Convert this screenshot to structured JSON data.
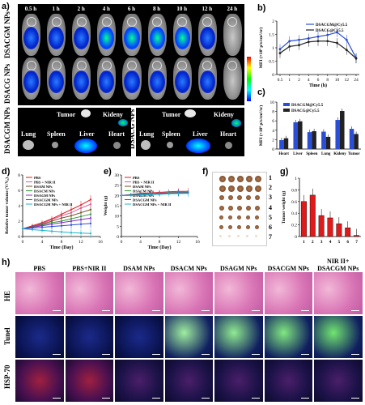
{
  "panel_a": {
    "label": "a)",
    "times": [
      "0.5 h",
      "1 h",
      "2 h",
      "4 h",
      "6 h",
      "8 h",
      "10 h",
      "12 h",
      "24 h"
    ],
    "row1_label": "DSACGM NPs",
    "row2_label": "DSACG NPs"
  },
  "panel_a2": {
    "row_label": "DSACGM NPs",
    "left_organs": {
      "tumor": "Tumor",
      "kidney": "Kideny",
      "lung": "Lung",
      "spleen": "Spleen",
      "liver": "Liver",
      "heart": "Heart"
    },
    "right_label": "DSACG NPs",
    "right_organs": {
      "tumor": "Tumor",
      "kidney": "Kideny",
      "lung": "Lung",
      "spleen": "Spleen",
      "liver": "Liver",
      "heart": "Heart"
    }
  },
  "panel_labels": {
    "b": "b)",
    "c": "c)",
    "d": "d)",
    "e": "e)",
    "f": "f)",
    "g": "g)",
    "h": "h)"
  },
  "chart_data": [
    {
      "id": "b",
      "type": "line",
      "xlabel": "Time (h)",
      "ylabel": "MFI (×10⁹ p/s/cm²/sr)",
      "x": [
        "0.5",
        "1",
        "2",
        "4",
        "6",
        "8",
        "10",
        "12",
        "24"
      ],
      "ylim": [
        0,
        2.0
      ],
      "yticks": [
        0.0,
        0.5,
        1.0,
        1.5,
        2.0
      ],
      "series": [
        {
          "name": "DSACGM@Cy5.5",
          "color": "#2a4fd6",
          "values": [
            0.95,
            1.25,
            1.3,
            1.35,
            1.42,
            1.48,
            1.58,
            1.3,
            0.62
          ]
        },
        {
          "name": "DSACG@Cy5.5",
          "color": "#222222",
          "values": [
            0.8,
            1.05,
            1.1,
            1.22,
            1.25,
            1.25,
            1.18,
            0.92,
            0.6
          ]
        }
      ]
    },
    {
      "id": "c",
      "type": "bar",
      "categories": [
        "Heart",
        "Liver",
        "Spleen",
        "Lung",
        "Kideny",
        "Tumor"
      ],
      "ylabel": "MFI (×10⁹ p/s/cm²/sr)",
      "ylim": [
        0,
        10
      ],
      "yticks": [
        0,
        2,
        4,
        6,
        8,
        10
      ],
      "series": [
        {
          "name": "DSACGM@Cy5.5",
          "color": "#2a4fd6",
          "values": [
            1.9,
            5.7,
            3.6,
            3.7,
            6.2,
            4.3
          ]
        },
        {
          "name": "DSACG@Cy5.5",
          "color": "#222222",
          "values": [
            2.3,
            5.9,
            3.8,
            2.6,
            8.1,
            3.2
          ]
        }
      ]
    },
    {
      "id": "d",
      "type": "line",
      "xlabel": "Time (Day)",
      "ylabel": "Relative tumor volume (V/V₀)",
      "x": [
        0,
        2,
        4,
        6,
        8,
        10,
        12,
        14
      ],
      "xlim": [
        0,
        16
      ],
      "xticks": [
        0,
        4,
        8,
        12,
        16
      ],
      "ylim": [
        0,
        8
      ],
      "yticks": [
        0,
        2,
        4,
        6,
        8
      ],
      "series": [
        {
          "name": "PBS",
          "color": "#e0191b",
          "values": [
            1.0,
            1.4,
            1.8,
            2.3,
            2.9,
            3.5,
            4.1,
            4.8
          ]
        },
        {
          "name": "PBS + NIR II",
          "color": "#e05a9a",
          "values": [
            1.0,
            1.3,
            1.7,
            2.2,
            2.7,
            3.1,
            3.7,
            4.2
          ]
        },
        {
          "name": "DSAM NPs",
          "color": "#7a4a2a",
          "values": [
            1.0,
            1.3,
            1.6,
            2.0,
            2.4,
            2.7,
            3.1,
            3.5
          ]
        },
        {
          "name": "DSACM NPs",
          "color": "#2aa02a",
          "values": [
            1.0,
            1.2,
            1.5,
            1.8,
            2.0,
            2.3,
            2.6,
            2.9
          ]
        },
        {
          "name": "DSAGM NPs",
          "color": "#8a2ad6",
          "values": [
            1.0,
            1.2,
            1.4,
            1.6,
            1.8,
            2.0,
            2.2,
            2.4
          ]
        },
        {
          "name": "DSACGM NPs",
          "color": "#2a4fd6",
          "values": [
            1.0,
            1.1,
            1.2,
            1.3,
            1.4,
            1.5,
            1.6,
            1.7
          ]
        },
        {
          "name": "DSACGM NPs + NIR II",
          "color": "#1fb5c6",
          "values": [
            1.0,
            0.9,
            0.8,
            0.7,
            0.6,
            0.5,
            0.45,
            0.4
          ]
        }
      ]
    },
    {
      "id": "e",
      "type": "line",
      "xlabel": "Time (Day)",
      "ylabel": "Weight (g)",
      "x": [
        0,
        2,
        4,
        6,
        8,
        10,
        12,
        14
      ],
      "xlim": [
        0,
        16
      ],
      "xticks": [
        0,
        4,
        8,
        12,
        16
      ],
      "ylim": [
        0,
        30
      ],
      "yticks": [
        0,
        5,
        10,
        15,
        20,
        25,
        30
      ],
      "series": [
        {
          "name": "PBS",
          "color": "#e0191b",
          "values": [
            20.0,
            20.5,
            21.0,
            21.2,
            21.5,
            21.8,
            22.0,
            22.0
          ]
        },
        {
          "name": "PBS + NIR II",
          "color": "#e05a9a",
          "values": [
            20.0,
            20.3,
            20.6,
            21.0,
            21.2,
            21.5,
            21.6,
            21.8
          ]
        },
        {
          "name": "DSAM NPs",
          "color": "#7a4a2a",
          "values": [
            20.0,
            20.2,
            20.5,
            20.8,
            21.0,
            21.0,
            21.2,
            21.4
          ]
        },
        {
          "name": "DSACM NPs",
          "color": "#2aa02a",
          "values": [
            20.0,
            20.4,
            20.6,
            20.8,
            21.0,
            21.3,
            21.4,
            21.5
          ]
        },
        {
          "name": "DSAGM NPs",
          "color": "#8a2ad6",
          "values": [
            20.0,
            20.1,
            20.3,
            20.6,
            20.9,
            21.1,
            21.2,
            21.3
          ]
        },
        {
          "name": "DSACGM NPs",
          "color": "#2a4fd6",
          "values": [
            20.0,
            20.2,
            20.4,
            20.7,
            20.8,
            21.0,
            21.1,
            21.2
          ]
        },
        {
          "name": "DSACGM NPs + NIR II",
          "color": "#1fb5c6",
          "values": [
            20.0,
            20.0,
            20.2,
            20.5,
            20.6,
            20.8,
            20.9,
            21.0
          ]
        }
      ]
    },
    {
      "id": "g",
      "type": "bar",
      "categories": [
        "1",
        "2",
        "3",
        "4",
        "5",
        "6",
        "7"
      ],
      "ylabel": "Tumor weight (g)",
      "ylim": [
        0,
        1.0
      ],
      "yticks": [
        0.0,
        0.2,
        0.4,
        0.6,
        0.8,
        1.0
      ],
      "series": [
        {
          "name": "",
          "color": "#e0191b",
          "values": [
            0.6,
            0.71,
            0.36,
            0.32,
            0.22,
            0.15,
            0.02
          ]
        }
      ]
    }
  ],
  "panel_f": {
    "rows": [
      "1",
      "2",
      "3",
      "4",
      "5",
      "6",
      "7"
    ]
  },
  "panel_h": {
    "columns": [
      "PBS",
      "PBS+NIR II",
      "DSAM NPs",
      "DSACM NPs",
      "DSAGM NPs",
      "DSACGM NPs",
      "NIR II+\nDSACGM NPs"
    ],
    "rows": [
      "HE",
      "Tunel",
      "HSP-70"
    ]
  }
}
